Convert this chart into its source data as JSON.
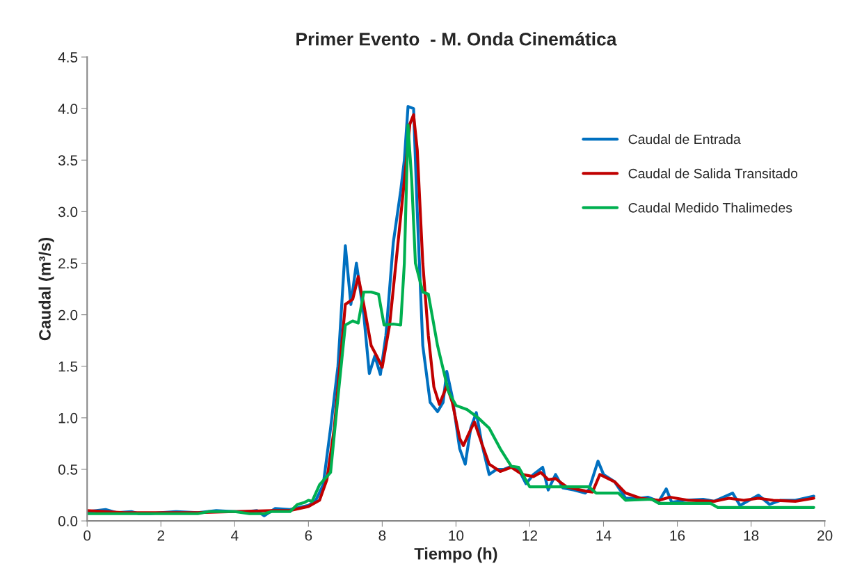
{
  "chart_data": {
    "type": "line",
    "title": "Primer Evento  - M. Onda Cinemática",
    "xlabel": "Tiempo (h)",
    "ylabel": "Caudal (m³/s)",
    "xlim": [
      0,
      20
    ],
    "xticks": [
      0,
      2,
      4,
      6,
      8,
      10,
      12,
      14,
      16,
      18,
      20
    ],
    "ylim": [
      0,
      4.5
    ],
    "yticks": [
      {
        "value": 0,
        "label": "0.0"
      },
      0.5,
      {
        "value": 1,
        "label": "1.0"
      },
      1.5,
      {
        "value": 2,
        "label": "2.0"
      },
      2.5,
      {
        "value": 3,
        "label": "3.0"
      },
      3.5,
      {
        "value": 4,
        "label": "4.0"
      },
      4.5
    ],
    "grid": false,
    "legend": "top right",
    "marker": "none",
    "line_style": "solid",
    "series": [
      {
        "name": "Caudal de Entrada",
        "color": "#0070c0",
        "x": [
          0,
          0.5,
          0.8,
          1.2,
          1.4,
          1.7,
          2.0,
          2.4,
          3,
          3.5,
          4,
          4.3,
          4.6,
          4.8,
          5.1,
          5.5,
          6.0,
          6.2,
          6.4,
          6.6,
          6.8,
          7.0,
          7.15,
          7.3,
          7.5,
          7.65,
          7.8,
          7.95,
          8.1,
          8.3,
          8.5,
          8.6,
          8.7,
          8.85,
          8.95,
          9.1,
          9.3,
          9.5,
          9.65,
          9.75,
          9.9,
          10.1,
          10.25,
          10.4,
          10.55,
          10.7,
          10.9,
          11.1,
          11.3,
          11.5,
          11.7,
          11.9,
          12.1,
          12.35,
          12.5,
          12.7,
          12.9,
          13.2,
          13.5,
          13.6,
          13.85,
          14.0,
          14.3,
          14.6,
          15,
          15.2,
          15.5,
          15.7,
          15.85,
          16.2,
          16.7,
          17.0,
          17.5,
          17.7,
          18.0,
          18.2,
          18.5,
          18.8,
          19.2,
          19.7
        ],
        "values": [
          0.09,
          0.11,
          0.08,
          0.09,
          0.07,
          0.07,
          0.08,
          0.09,
          0.08,
          0.1,
          0.09,
          0.09,
          0.1,
          0.05,
          0.12,
          0.11,
          0.15,
          0.2,
          0.35,
          0.9,
          1.5,
          2.67,
          2.1,
          2.5,
          2.0,
          1.43,
          1.6,
          1.42,
          1.8,
          2.7,
          3.2,
          3.5,
          4.02,
          4.0,
          3.0,
          1.7,
          1.15,
          1.06,
          1.15,
          1.45,
          1.2,
          0.7,
          0.55,
          0.9,
          1.05,
          0.75,
          0.45,
          0.5,
          0.5,
          0.53,
          0.5,
          0.36,
          0.45,
          0.52,
          0.3,
          0.45,
          0.32,
          0.3,
          0.27,
          0.3,
          0.58,
          0.45,
          0.38,
          0.22,
          0.22,
          0.23,
          0.19,
          0.31,
          0.18,
          0.2,
          0.21,
          0.19,
          0.27,
          0.15,
          0.21,
          0.25,
          0.16,
          0.2,
          0.2,
          0.24
        ]
      },
      {
        "name": "Caudal de Salida Transitado",
        "color": "#c00000",
        "x": [
          0,
          0.5,
          1,
          3,
          4,
          5,
          5.5,
          6,
          6.3,
          6.5,
          6.7,
          6.9,
          7.0,
          7.2,
          7.35,
          7.5,
          7.7,
          7.85,
          8.0,
          8.2,
          8.4,
          8.6,
          8.75,
          8.85,
          8.95,
          9.1,
          9.25,
          9.4,
          9.55,
          9.75,
          9.9,
          10.1,
          10.2,
          10.35,
          10.5,
          10.7,
          10.9,
          11.2,
          11.5,
          11.8,
          12.1,
          12.3,
          12.5,
          12.7,
          13,
          13.5,
          13.7,
          13.9,
          14.3,
          14.6,
          15,
          15.5,
          15.8,
          16.3,
          17,
          17.4,
          17.8,
          18.2,
          18.6,
          19.2,
          19.7
        ],
        "values": [
          0.1,
          0.09,
          0.08,
          0.08,
          0.09,
          0.1,
          0.1,
          0.14,
          0.2,
          0.4,
          0.9,
          1.7,
          2.1,
          2.15,
          2.37,
          2.1,
          1.7,
          1.6,
          1.49,
          1.9,
          2.6,
          3.3,
          3.85,
          3.94,
          3.6,
          2.5,
          1.8,
          1.3,
          1.13,
          1.31,
          1.15,
          0.8,
          0.73,
          0.85,
          0.96,
          0.75,
          0.55,
          0.48,
          0.52,
          0.45,
          0.43,
          0.47,
          0.4,
          0.41,
          0.33,
          0.29,
          0.28,
          0.45,
          0.38,
          0.27,
          0.22,
          0.2,
          0.23,
          0.2,
          0.19,
          0.22,
          0.2,
          0.22,
          0.2,
          0.19,
          0.22
        ]
      },
      {
        "name": "Caudal Medido Thalimedes",
        "color": "#00b050",
        "x": [
          0,
          1,
          2,
          3,
          3.3,
          4,
          4.4,
          4.8,
          5.0,
          5.5,
          5.7,
          5.9,
          6.0,
          6.1,
          6.3,
          6.6,
          6.8,
          7.0,
          7.2,
          7.35,
          7.5,
          7.7,
          7.9,
          8.05,
          8.3,
          8.5,
          8.6,
          8.7,
          8.8,
          8.9,
          9.1,
          9.25,
          9.5,
          9.8,
          10.0,
          10.3,
          10.6,
          10.9,
          11.2,
          11.5,
          11.7,
          12.0,
          12.3,
          13,
          13.6,
          13.8,
          14.4,
          14.6,
          15.3,
          15.5,
          16.0,
          16.6,
          16.9,
          17.1,
          18,
          19.7
        ],
        "values": [
          0.07,
          0.07,
          0.07,
          0.07,
          0.09,
          0.09,
          0.07,
          0.07,
          0.09,
          0.09,
          0.16,
          0.18,
          0.2,
          0.19,
          0.35,
          0.47,
          1.2,
          1.9,
          1.94,
          1.92,
          2.22,
          2.22,
          2.2,
          1.9,
          1.91,
          1.9,
          2.5,
          3.84,
          3.3,
          2.5,
          2.22,
          2.2,
          1.7,
          1.25,
          1.12,
          1.08,
          1.0,
          0.9,
          0.7,
          0.53,
          0.52,
          0.33,
          0.33,
          0.33,
          0.33,
          0.27,
          0.27,
          0.2,
          0.21,
          0.17,
          0.17,
          0.17,
          0.17,
          0.13,
          0.13,
          0.13
        ]
      }
    ]
  }
}
